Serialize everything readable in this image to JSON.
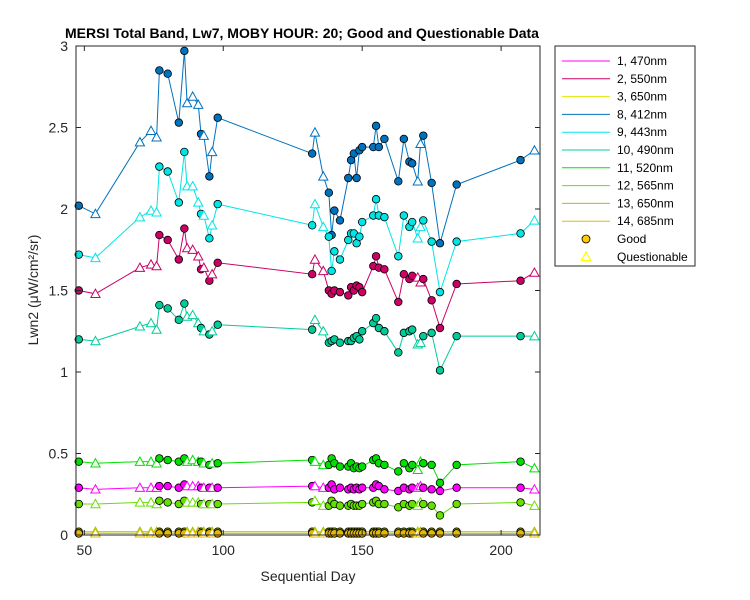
{
  "chart_data": {
    "type": "line",
    "title": "MERSI Total Band, Lw7, MOBY HOUR: 20;  Good and Questionable Data",
    "xlabel": "Sequential Day",
    "ylabel": "Lwn2 (μW/cm²/sr)",
    "xlim": [
      47,
      214
    ],
    "ylim": [
      0,
      3
    ],
    "xticks": [
      50,
      100,
      150,
      200
    ],
    "yticks": [
      0,
      0.5,
      1,
      1.5,
      2,
      2.5,
      3
    ],
    "xtick_labels": [
      "50",
      "100",
      "150",
      "200"
    ],
    "ytick_labels": [
      "0",
      "0.5",
      "1",
      "1.5",
      "2",
      "2.5",
      "3"
    ],
    "grid": false,
    "legend_position": "outside-right",
    "x": [
      48,
      54,
      70,
      74,
      76,
      77,
      80,
      84,
      86,
      87,
      89,
      91,
      92,
      93,
      95,
      96,
      98,
      132,
      133,
      136,
      138,
      139,
      140,
      142,
      145,
      146,
      147,
      148,
      149,
      150,
      154,
      155,
      156,
      158,
      163,
      165,
      167,
      168,
      170,
      171,
      172,
      175,
      178,
      184,
      207,
      212
    ],
    "quality": [
      "good",
      "questionable",
      "questionable",
      "questionable",
      "questionable",
      "good",
      "good",
      "good",
      "good",
      "questionable",
      "questionable",
      "questionable",
      "good",
      "questionable",
      "good",
      "questionable",
      "good",
      "good",
      "questionable",
      "questionable",
      "good",
      "good",
      "good",
      "good",
      "good",
      "good",
      "good",
      "good",
      "good",
      "good",
      "good",
      "good",
      "good",
      "good",
      "good",
      "good",
      "good",
      "good",
      "questionable",
      "questionable",
      "good",
      "good",
      "good",
      "good",
      "good",
      "questionable"
    ],
    "series": [
      {
        "name": "1, 470nm",
        "color": "#ff00ff",
        "values": [
          0.29,
          0.28,
          0.29,
          0.29,
          0.29,
          0.3,
          0.3,
          0.29,
          0.31,
          0.3,
          0.3,
          0.3,
          0.29,
          0.29,
          0.29,
          0.29,
          0.29,
          0.3,
          0.3,
          0.29,
          0.29,
          0.31,
          0.28,
          0.29,
          0.28,
          0.29,
          0.28,
          0.29,
          0.28,
          0.29,
          0.29,
          0.31,
          0.3,
          0.28,
          0.27,
          0.29,
          0.28,
          0.29,
          0.29,
          0.3,
          0.29,
          0.28,
          0.27,
          0.29,
          0.29,
          0.28
        ]
      },
      {
        "name": "2, 550nm",
        "color": "#cc0066",
        "values": [
          1.5,
          1.48,
          1.64,
          1.66,
          1.65,
          1.84,
          1.81,
          1.69,
          1.88,
          1.76,
          1.75,
          1.71,
          1.63,
          1.64,
          1.56,
          1.6,
          1.67,
          1.6,
          1.69,
          1.62,
          1.5,
          1.48,
          1.5,
          1.49,
          1.47,
          1.52,
          1.5,
          1.53,
          1.52,
          1.49,
          1.65,
          1.71,
          1.64,
          1.63,
          1.43,
          1.6,
          1.57,
          1.59,
          1.58,
          1.55,
          1.57,
          1.44,
          1.27,
          1.54,
          1.56,
          1.61
        ]
      },
      {
        "name": "3, 650nm",
        "color": "#e6e600",
        "values": [
          0.01,
          0.01,
          0.01,
          0.01,
          0.01,
          0.01,
          0.01,
          0.01,
          0.01,
          0.01,
          0.01,
          0.01,
          0.01,
          0.01,
          0.01,
          0.01,
          0.01,
          0.01,
          0.01,
          0.01,
          0.01,
          0.01,
          0.01,
          0.01,
          0.01,
          0.01,
          0.01,
          0.01,
          0.01,
          0.01,
          0.01,
          0.01,
          0.01,
          0.01,
          0.01,
          0.01,
          0.01,
          0.01,
          0.01,
          0.01,
          0.01,
          0.01,
          0.01,
          0.01,
          0.01,
          0.01
        ]
      },
      {
        "name": "8, 412nm",
        "color": "#0072bd",
        "values": [
          2.02,
          1.97,
          2.41,
          2.48,
          2.44,
          2.85,
          2.83,
          2.53,
          2.97,
          2.65,
          2.69,
          2.64,
          2.46,
          2.45,
          2.2,
          2.35,
          2.56,
          2.34,
          2.47,
          2.2,
          2.1,
          1.84,
          1.99,
          1.93,
          2.19,
          2.3,
          2.34,
          2.19,
          2.36,
          2.38,
          2.38,
          2.51,
          2.38,
          2.43,
          2.17,
          2.43,
          2.29,
          2.28,
          2.17,
          2.4,
          2.45,
          2.16,
          1.79,
          2.15,
          2.3,
          2.36
        ]
      },
      {
        "name": "9, 443nm",
        "color": "#00e5e5",
        "values": [
          1.72,
          1.7,
          1.95,
          1.99,
          1.98,
          2.26,
          2.23,
          2.04,
          2.35,
          2.14,
          2.14,
          2.04,
          1.97,
          1.96,
          1.82,
          1.9,
          2.03,
          1.9,
          2.03,
          1.89,
          1.83,
          1.62,
          1.74,
          1.69,
          1.81,
          1.85,
          1.85,
          1.79,
          1.83,
          1.92,
          1.96,
          2.06,
          1.96,
          1.95,
          1.71,
          1.96,
          1.89,
          1.92,
          1.82,
          1.89,
          1.93,
          1.8,
          1.49,
          1.8,
          1.85,
          1.93
        ]
      },
      {
        "name": "10, 490nm",
        "color": "#00cc99",
        "values": [
          1.2,
          1.19,
          1.28,
          1.3,
          1.26,
          1.41,
          1.39,
          1.32,
          1.42,
          1.34,
          1.35,
          1.3,
          1.27,
          1.25,
          1.23,
          1.25,
          1.29,
          1.26,
          1.32,
          1.25,
          1.18,
          1.19,
          1.2,
          1.18,
          1.19,
          1.19,
          1.21,
          1.22,
          1.2,
          1.25,
          1.3,
          1.33,
          1.27,
          1.25,
          1.12,
          1.24,
          1.25,
          1.26,
          1.17,
          1.18,
          1.22,
          1.24,
          1.01,
          1.22,
          1.22,
          1.22
        ]
      },
      {
        "name": "11, 520nm",
        "color": "#00e000",
        "values": [
          0.45,
          0.44,
          0.45,
          0.45,
          0.44,
          0.47,
          0.46,
          0.45,
          0.47,
          0.45,
          0.46,
          0.45,
          0.45,
          0.44,
          0.43,
          0.44,
          0.44,
          0.46,
          0.45,
          0.43,
          0.43,
          0.47,
          0.44,
          0.42,
          0.42,
          0.44,
          0.41,
          0.42,
          0.41,
          0.42,
          0.46,
          0.47,
          0.44,
          0.43,
          0.39,
          0.44,
          0.41,
          0.43,
          0.4,
          0.45,
          0.44,
          0.43,
          0.32,
          0.43,
          0.45,
          0.41
        ]
      },
      {
        "name": "12, 565nm",
        "color": "#66e000",
        "values": [
          0.19,
          0.19,
          0.2,
          0.2,
          0.19,
          0.21,
          0.2,
          0.19,
          0.21,
          0.2,
          0.2,
          0.2,
          0.19,
          0.19,
          0.19,
          0.19,
          0.19,
          0.2,
          0.21,
          0.18,
          0.18,
          0.21,
          0.19,
          0.18,
          0.18,
          0.19,
          0.18,
          0.18,
          0.18,
          0.19,
          0.2,
          0.21,
          0.19,
          0.19,
          0.17,
          0.19,
          0.18,
          0.19,
          0.18,
          0.2,
          0.19,
          0.18,
          0.12,
          0.19,
          0.2,
          0.18
        ]
      },
      {
        "name": "13, 650nm",
        "color": "#99cc00",
        "values": [
          0.02,
          0.02,
          0.02,
          0.02,
          0.02,
          0.02,
          0.02,
          0.02,
          0.02,
          0.02,
          0.02,
          0.02,
          0.02,
          0.02,
          0.02,
          0.02,
          0.02,
          0.02,
          0.02,
          0.02,
          0.02,
          0.02,
          0.02,
          0.02,
          0.02,
          0.02,
          0.02,
          0.02,
          0.02,
          0.02,
          0.02,
          0.02,
          0.02,
          0.02,
          0.02,
          0.02,
          0.02,
          0.02,
          0.02,
          0.02,
          0.02,
          0.02,
          0.02,
          0.02,
          0.02,
          0.02
        ]
      },
      {
        "name": "14, 685nm",
        "color": "#e6b800",
        "values": [
          0.01,
          0.01,
          0.01,
          0.01,
          0.01,
          0.01,
          0.01,
          0.01,
          0.01,
          0.01,
          0.01,
          0.01,
          0.01,
          0.01,
          0.01,
          0.01,
          0.01,
          0.01,
          0.01,
          0.01,
          0.01,
          0.01,
          0.01,
          0.01,
          0.01,
          0.01,
          0.01,
          0.01,
          0.01,
          0.01,
          0.01,
          0.01,
          0.01,
          0.01,
          0.01,
          0.01,
          0.01,
          0.01,
          0.01,
          0.01,
          0.01,
          0.01,
          0.01,
          0.01,
          0.01,
          0.01
        ]
      }
    ],
    "markers": {
      "good": "Good",
      "questionable": "Questionable"
    },
    "marker_colors": {
      "good_face": "#ffcc00",
      "questionable_edge": "#ffff00"
    }
  }
}
